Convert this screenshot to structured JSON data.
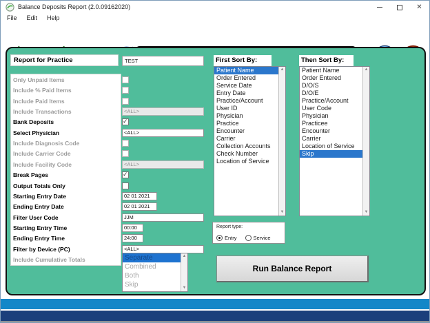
{
  "window": {
    "title": "Balance Deposits Report (2.0.09162020)"
  },
  "menu": {
    "items": [
      "File",
      "Edit",
      "Help"
    ]
  },
  "toolbar": {
    "banner": "Balance Deposits Report (2.0.09162020)",
    "icons": [
      "back-arrow",
      "forward-arrow",
      "home",
      "undo",
      "help",
      "exit"
    ]
  },
  "form": {
    "practice_label": "Report for Practice",
    "practice_value": "TEST",
    "rows": [
      {
        "label": "Only Unpaid Items",
        "type": "checkbox",
        "checked": false,
        "enabled": false
      },
      {
        "label": "Include % Paid Items",
        "type": "checkbox",
        "checked": false,
        "enabled": false
      },
      {
        "label": "Include Paid Items",
        "type": "checkbox",
        "checked": false,
        "enabled": false
      },
      {
        "label": "Include Transactions",
        "type": "field",
        "value": "<ALL>",
        "width": "wide",
        "enabled": false
      },
      {
        "label": "Bank Deposits",
        "type": "checkbox",
        "checked": true,
        "enabled": true
      },
      {
        "label": "Select Physician",
        "type": "field",
        "value": "<ALL>",
        "width": "wide",
        "enabled": true
      },
      {
        "label": "Include Diagnosis Code",
        "type": "checkbox",
        "checked": false,
        "enabled": false
      },
      {
        "label": "Include Carrier Code",
        "type": "checkbox",
        "checked": false,
        "enabled": false
      },
      {
        "label": "Include Facility Code",
        "type": "field",
        "value": "<ALL>",
        "width": "wide",
        "enabled": false
      },
      {
        "label": "Break Pages",
        "type": "checkbox",
        "checked": true,
        "enabled": true
      },
      {
        "label": "Output Totals Only",
        "type": "checkbox",
        "checked": false,
        "enabled": true
      },
      {
        "label": "Starting Entry Date",
        "type": "field",
        "value": "02 01 2021",
        "width": "date",
        "enabled": true
      },
      {
        "label": "Ending Entry Date",
        "type": "field",
        "value": "02 01 2021",
        "width": "date",
        "enabled": true
      },
      {
        "label": "Filter User Code",
        "type": "field",
        "value": "JJM",
        "width": "wide",
        "enabled": true
      },
      {
        "label": "Starting Entry Time",
        "type": "field",
        "value": "00:00",
        "width": "time",
        "enabled": true
      },
      {
        "label": "Ending Entry Time",
        "type": "field",
        "value": "24:00",
        "width": "time",
        "enabled": true
      },
      {
        "label": "Filter by Device (PC)",
        "type": "field",
        "value": "<ALL>",
        "width": "wide",
        "enabled": true
      },
      {
        "label": "Include Cumulative Totals",
        "type": "none",
        "enabled": false
      }
    ],
    "cumulative_list": {
      "items": [
        "Separate",
        "Combined",
        "Both",
        "Skip"
      ],
      "selected_index": 0
    }
  },
  "first_sort": {
    "title": "First Sort By:",
    "selected_index": 0,
    "items": [
      "Patient Name",
      "Order Entered",
      "Service Date",
      "Entry Date",
      "Practice/Account",
      "User ID",
      "Physician",
      "Practice",
      "Encounter",
      "Carrier",
      "Collection Accounts",
      "Check Number",
      "Location of Service"
    ]
  },
  "then_sort": {
    "title": "Then Sort By:",
    "selected_index": 11,
    "items": [
      "Patient Name",
      "Order Entered",
      "D/O/S",
      "D/O/E",
      "Practice/Account",
      "User Code",
      "Physician",
      "Practicee",
      "Encounter",
      "Carrier",
      "Location of Service",
      "Skip"
    ]
  },
  "report_type": {
    "label": "Report type:",
    "options": [
      {
        "label": "Entry",
        "selected": true
      },
      {
        "label": "Service",
        "selected": false
      }
    ]
  },
  "run_button_label": "Run Balance Report",
  "colors": {
    "teal_background": "#50bd9b",
    "banner_cyan": "#18b6dc",
    "selection_blue": "#2b77cc",
    "bottom_bar_light_blue": "#1487c8",
    "bottom_bar_navy": "#1b3f7b"
  }
}
